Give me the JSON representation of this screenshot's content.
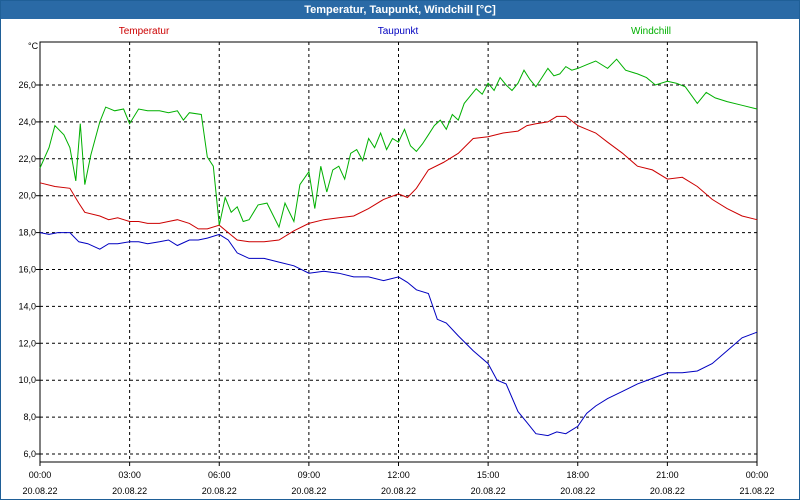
{
  "window": {
    "title": "Temperatur, Taupunkt, Windchill [°C]"
  },
  "chart_data": {
    "type": "line",
    "title": "Temperatur, Taupunkt, Windchill [°C]",
    "ylabel": "°C",
    "ylim": [
      5.5,
      28.5
    ],
    "yticks": [
      "6,0",
      "8,0",
      "10,0",
      "12,0",
      "14,0",
      "16,0",
      "18,0",
      "20,0",
      "22,0",
      "24,0",
      "26,0"
    ],
    "xlim": [
      0,
      24
    ],
    "xticks": [
      {
        "time": "00:00",
        "date": "20.08.22"
      },
      {
        "time": "03:00",
        "date": "20.08.22"
      },
      {
        "time": "06:00",
        "date": "20.08.22"
      },
      {
        "time": "09:00",
        "date": "20.08.22"
      },
      {
        "time": "12:00",
        "date": "20.08.22"
      },
      {
        "time": "15:00",
        "date": "20.08.22"
      },
      {
        "time": "18:00",
        "date": "20.08.22"
      },
      {
        "time": "21:00",
        "date": "20.08.22"
      },
      {
        "time": "00:00",
        "date": "21.08.22"
      }
    ],
    "grid": true,
    "legend_position": "top",
    "series": [
      {
        "name": "Temperatur",
        "color": "#cc0000",
        "points": [
          [
            0.0,
            20.7
          ],
          [
            0.5,
            20.5
          ],
          [
            1.0,
            20.4
          ],
          [
            1.3,
            19.6
          ],
          [
            1.5,
            19.1
          ],
          [
            2.0,
            18.9
          ],
          [
            2.3,
            18.7
          ],
          [
            2.6,
            18.8
          ],
          [
            3.0,
            18.6
          ],
          [
            3.3,
            18.6
          ],
          [
            3.6,
            18.5
          ],
          [
            4.0,
            18.5
          ],
          [
            4.3,
            18.6
          ],
          [
            4.6,
            18.7
          ],
          [
            5.0,
            18.5
          ],
          [
            5.3,
            18.2
          ],
          [
            5.6,
            18.2
          ],
          [
            6.0,
            18.4
          ],
          [
            6.3,
            18.0
          ],
          [
            6.6,
            17.6
          ],
          [
            7.0,
            17.5
          ],
          [
            7.5,
            17.5
          ],
          [
            8.0,
            17.6
          ],
          [
            8.5,
            18.1
          ],
          [
            9.0,
            18.5
          ],
          [
            9.5,
            18.7
          ],
          [
            10.0,
            18.8
          ],
          [
            10.5,
            18.9
          ],
          [
            11.0,
            19.3
          ],
          [
            11.5,
            19.8
          ],
          [
            12.0,
            20.1
          ],
          [
            12.3,
            19.9
          ],
          [
            12.6,
            20.4
          ],
          [
            13.0,
            21.4
          ],
          [
            13.5,
            21.8
          ],
          [
            14.0,
            22.3
          ],
          [
            14.5,
            23.1
          ],
          [
            15.0,
            23.2
          ],
          [
            15.5,
            23.4
          ],
          [
            16.0,
            23.5
          ],
          [
            16.3,
            23.8
          ],
          [
            16.6,
            23.9
          ],
          [
            17.0,
            24.0
          ],
          [
            17.3,
            24.3
          ],
          [
            17.6,
            24.3
          ],
          [
            18.0,
            23.8
          ],
          [
            18.3,
            23.6
          ],
          [
            18.6,
            23.4
          ],
          [
            19.0,
            22.9
          ],
          [
            19.5,
            22.3
          ],
          [
            20.0,
            21.6
          ],
          [
            20.5,
            21.4
          ],
          [
            21.0,
            20.9
          ],
          [
            21.5,
            21.0
          ],
          [
            22.0,
            20.5
          ],
          [
            22.5,
            19.8
          ],
          [
            23.0,
            19.3
          ],
          [
            23.5,
            18.9
          ],
          [
            24.0,
            18.7
          ]
        ]
      },
      {
        "name": "Taupunkt",
        "color": "#0000c0",
        "points": [
          [
            0.0,
            18.0
          ],
          [
            0.3,
            17.9
          ],
          [
            0.6,
            18.0
          ],
          [
            1.0,
            18.0
          ],
          [
            1.3,
            17.5
          ],
          [
            1.6,
            17.4
          ],
          [
            2.0,
            17.1
          ],
          [
            2.3,
            17.4
          ],
          [
            2.6,
            17.4
          ],
          [
            3.0,
            17.5
          ],
          [
            3.3,
            17.5
          ],
          [
            3.6,
            17.4
          ],
          [
            4.0,
            17.5
          ],
          [
            4.3,
            17.6
          ],
          [
            4.6,
            17.3
          ],
          [
            5.0,
            17.6
          ],
          [
            5.3,
            17.6
          ],
          [
            5.6,
            17.7
          ],
          [
            6.0,
            17.9
          ],
          [
            6.3,
            17.6
          ],
          [
            6.6,
            16.9
          ],
          [
            7.0,
            16.6
          ],
          [
            7.5,
            16.6
          ],
          [
            8.0,
            16.4
          ],
          [
            8.5,
            16.2
          ],
          [
            9.0,
            15.8
          ],
          [
            9.5,
            15.9
          ],
          [
            10.0,
            15.8
          ],
          [
            10.5,
            15.6
          ],
          [
            11.0,
            15.6
          ],
          [
            11.5,
            15.4
          ],
          [
            12.0,
            15.6
          ],
          [
            12.3,
            15.3
          ],
          [
            12.6,
            14.9
          ],
          [
            13.0,
            14.7
          ],
          [
            13.3,
            13.3
          ],
          [
            13.6,
            13.1
          ],
          [
            14.0,
            12.4
          ],
          [
            14.5,
            11.6
          ],
          [
            15.0,
            10.9
          ],
          [
            15.3,
            10.0
          ],
          [
            15.6,
            9.8
          ],
          [
            16.0,
            8.3
          ],
          [
            16.3,
            7.7
          ],
          [
            16.6,
            7.1
          ],
          [
            17.0,
            7.0
          ],
          [
            17.3,
            7.2
          ],
          [
            17.6,
            7.1
          ],
          [
            18.0,
            7.5
          ],
          [
            18.3,
            8.2
          ],
          [
            18.6,
            8.6
          ],
          [
            19.0,
            9.0
          ],
          [
            19.5,
            9.4
          ],
          [
            20.0,
            9.8
          ],
          [
            20.5,
            10.1
          ],
          [
            21.0,
            10.4
          ],
          [
            21.5,
            10.4
          ],
          [
            22.0,
            10.5
          ],
          [
            22.5,
            10.9
          ],
          [
            23.0,
            11.6
          ],
          [
            23.5,
            12.3
          ],
          [
            24.0,
            12.6
          ]
        ]
      },
      {
        "name": "Windchill",
        "color": "#00b000",
        "points": [
          [
            0.0,
            21.5
          ],
          [
            0.3,
            22.6
          ],
          [
            0.5,
            23.8
          ],
          [
            0.8,
            23.3
          ],
          [
            1.0,
            22.6
          ],
          [
            1.2,
            20.8
          ],
          [
            1.35,
            23.9
          ],
          [
            1.5,
            20.6
          ],
          [
            1.7,
            22.2
          ],
          [
            2.0,
            24.0
          ],
          [
            2.2,
            24.8
          ],
          [
            2.5,
            24.6
          ],
          [
            2.8,
            24.7
          ],
          [
            3.0,
            23.9
          ],
          [
            3.3,
            24.7
          ],
          [
            3.6,
            24.6
          ],
          [
            4.0,
            24.6
          ],
          [
            4.3,
            24.5
          ],
          [
            4.6,
            24.6
          ],
          [
            4.8,
            24.1
          ],
          [
            5.0,
            24.5
          ],
          [
            5.4,
            24.4
          ],
          [
            5.6,
            22.1
          ],
          [
            5.8,
            21.6
          ],
          [
            6.0,
            18.4
          ],
          [
            6.2,
            19.9
          ],
          [
            6.4,
            19.1
          ],
          [
            6.6,
            19.4
          ],
          [
            6.8,
            18.6
          ],
          [
            7.0,
            18.7
          ],
          [
            7.3,
            19.5
          ],
          [
            7.6,
            19.6
          ],
          [
            8.0,
            18.3
          ],
          [
            8.2,
            19.6
          ],
          [
            8.5,
            18.6
          ],
          [
            8.7,
            20.6
          ],
          [
            9.0,
            21.3
          ],
          [
            9.2,
            19.3
          ],
          [
            9.4,
            21.6
          ],
          [
            9.6,
            20.2
          ],
          [
            9.8,
            21.4
          ],
          [
            10.0,
            21.6
          ],
          [
            10.2,
            20.9
          ],
          [
            10.4,
            22.3
          ],
          [
            10.6,
            22.5
          ],
          [
            10.8,
            21.9
          ],
          [
            11.0,
            23.1
          ],
          [
            11.2,
            22.6
          ],
          [
            11.4,
            23.4
          ],
          [
            11.6,
            22.5
          ],
          [
            11.8,
            23.1
          ],
          [
            12.0,
            22.9
          ],
          [
            12.2,
            23.6
          ],
          [
            12.4,
            22.7
          ],
          [
            12.6,
            22.4
          ],
          [
            12.8,
            22.8
          ],
          [
            13.0,
            23.3
          ],
          [
            13.2,
            23.8
          ],
          [
            13.4,
            24.1
          ],
          [
            13.6,
            23.6
          ],
          [
            13.8,
            24.4
          ],
          [
            14.0,
            24.1
          ],
          [
            14.2,
            25.0
          ],
          [
            14.4,
            25.4
          ],
          [
            14.6,
            25.8
          ],
          [
            14.8,
            25.5
          ],
          [
            15.0,
            26.1
          ],
          [
            15.2,
            25.7
          ],
          [
            15.4,
            26.4
          ],
          [
            15.6,
            26.0
          ],
          [
            15.8,
            25.7
          ],
          [
            16.0,
            26.1
          ],
          [
            16.2,
            26.8
          ],
          [
            16.4,
            26.3
          ],
          [
            16.6,
            25.9
          ],
          [
            16.8,
            26.4
          ],
          [
            17.0,
            26.9
          ],
          [
            17.2,
            26.5
          ],
          [
            17.4,
            26.6
          ],
          [
            17.6,
            27.0
          ],
          [
            17.8,
            26.8
          ],
          [
            18.0,
            26.9
          ],
          [
            18.3,
            27.1
          ],
          [
            18.6,
            27.3
          ],
          [
            19.0,
            26.9
          ],
          [
            19.3,
            27.4
          ],
          [
            19.6,
            26.8
          ],
          [
            20.0,
            26.6
          ],
          [
            20.3,
            26.4
          ],
          [
            20.6,
            26.0
          ],
          [
            21.0,
            26.2
          ],
          [
            21.3,
            26.1
          ],
          [
            21.6,
            25.9
          ],
          [
            22.0,
            25.0
          ],
          [
            22.3,
            25.6
          ],
          [
            22.6,
            25.3
          ],
          [
            23.0,
            25.1
          ],
          [
            23.5,
            24.9
          ],
          [
            24.0,
            24.7
          ]
        ]
      }
    ]
  }
}
